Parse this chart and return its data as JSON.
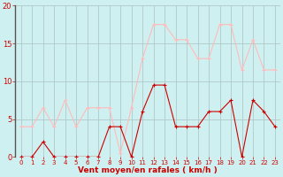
{
  "x": [
    0,
    1,
    2,
    3,
    4,
    5,
    6,
    7,
    8,
    9,
    10,
    11,
    12,
    13,
    14,
    15,
    16,
    17,
    18,
    19,
    20,
    21,
    22,
    23
  ],
  "wind_avg": [
    0,
    0,
    2,
    0,
    0,
    0,
    0,
    0,
    4,
    4,
    0,
    6,
    9.5,
    9.5,
    4,
    4,
    4,
    6,
    6,
    7.5,
    0,
    7.5,
    6,
    4
  ],
  "wind_gust": [
    4,
    4,
    6.5,
    4,
    7.5,
    4,
    6.5,
    6.5,
    6.5,
    0.5,
    6.5,
    13,
    17.5,
    17.5,
    15.5,
    15.5,
    13,
    13,
    17.5,
    17.5,
    11.5,
    15.5,
    11.5,
    11.5
  ],
  "avg_color": "#cc0000",
  "gust_color": "#ffbbbb",
  "bg_color": "#cff0f0",
  "grid_color": "#b0c8c8",
  "axis_label_color": "#cc0000",
  "tick_color": "#cc0000",
  "xlabel": "Vent moyen/en rafales ( km/h )",
  "ylim": [
    0,
    20
  ],
  "xlim": [
    -0.5,
    23.5
  ],
  "yticks": [
    0,
    5,
    10,
    15,
    20
  ],
  "xticks": [
    0,
    1,
    2,
    3,
    4,
    5,
    6,
    7,
    8,
    9,
    10,
    11,
    12,
    13,
    14,
    15,
    16,
    17,
    18,
    19,
    20,
    21,
    22,
    23
  ],
  "xlabel_fontsize": 6.5,
  "tick_fontsize": 5.0,
  "ytick_fontsize": 6.0,
  "line_width": 0.8,
  "marker_size": 2.5
}
